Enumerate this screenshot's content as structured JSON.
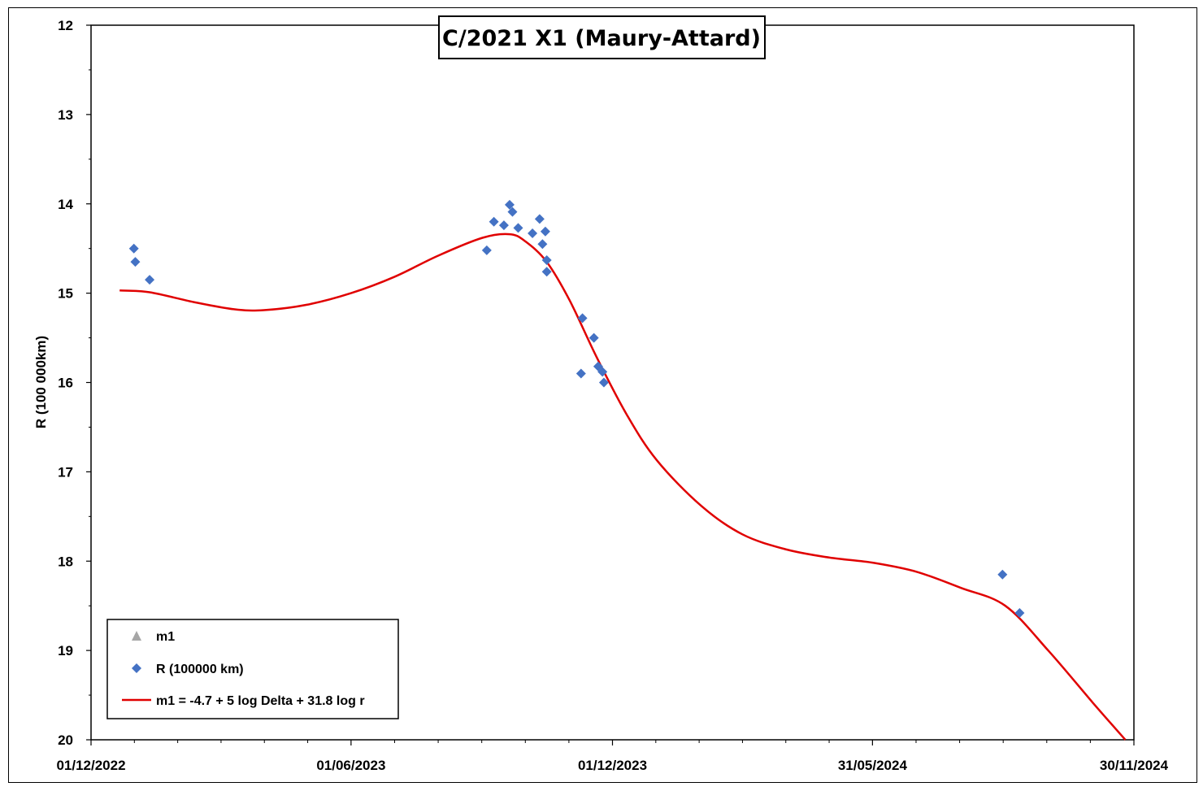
{
  "chart_data": {
    "type": "scatter",
    "title": "C/2021 X1 (Maury-Attard)",
    "xlabel": "",
    "ylabel": "R (100 000km)",
    "y_reversed": true,
    "ylim": [
      12,
      20
    ],
    "yticks": [
      "12",
      "13",
      "14",
      "15",
      "16",
      "17",
      "18",
      "19",
      "20"
    ],
    "xlim": [
      "2022-12-01",
      "2024-11-30"
    ],
    "xticks": [
      "01/12/2022",
      "01/06/2023",
      "01/12/2023",
      "31/05/2024",
      "30/11/2024"
    ],
    "grid": false,
    "legend_position": "bottom-left",
    "series": [
      {
        "name": "m1",
        "kind": "triangle",
        "color": "#a6a6a6",
        "points": []
      },
      {
        "name": "R (100000 km)",
        "kind": "diamond",
        "color": "#4472c4",
        "points": [
          {
            "x": "2022-12-31",
            "y": 14.5
          },
          {
            "x": "2023-01-01",
            "y": 14.65
          },
          {
            "x": "2023-01-11",
            "y": 14.85
          },
          {
            "x": "2023-09-04",
            "y": 14.52
          },
          {
            "x": "2023-09-09",
            "y": 14.2
          },
          {
            "x": "2023-09-16",
            "y": 14.24
          },
          {
            "x": "2023-09-20",
            "y": 14.01
          },
          {
            "x": "2023-09-22",
            "y": 14.09
          },
          {
            "x": "2023-09-26",
            "y": 14.27
          },
          {
            "x": "2023-10-06",
            "y": 14.33
          },
          {
            "x": "2023-10-11",
            "y": 14.17
          },
          {
            "x": "2023-10-13",
            "y": 14.45
          },
          {
            "x": "2023-10-15",
            "y": 14.31
          },
          {
            "x": "2023-10-16",
            "y": 14.63
          },
          {
            "x": "2023-10-16",
            "y": 14.76
          },
          {
            "x": "2023-11-09",
            "y": 15.9
          },
          {
            "x": "2023-11-10",
            "y": 15.28
          },
          {
            "x": "2023-11-18",
            "y": 15.5
          },
          {
            "x": "2023-11-21",
            "y": 15.82
          },
          {
            "x": "2023-11-24",
            "y": 15.88
          },
          {
            "x": "2023-11-25",
            "y": 16.0
          },
          {
            "x": "2024-08-30",
            "y": 18.15
          },
          {
            "x": "2024-09-11",
            "y": 18.58
          }
        ]
      },
      {
        "name": "m1 = -4.7 + 5 log Delta + 31.8 log r",
        "kind": "line",
        "color": "#e00000",
        "points": [
          {
            "x": "2022-12-21",
            "y": 14.97
          },
          {
            "x": "2023-01-11",
            "y": 14.99
          },
          {
            "x": "2023-02-11",
            "y": 15.1
          },
          {
            "x": "2023-03-11",
            "y": 15.18
          },
          {
            "x": "2023-04-01",
            "y": 15.19
          },
          {
            "x": "2023-05-01",
            "y": 15.13
          },
          {
            "x": "2023-06-01",
            "y": 15.0
          },
          {
            "x": "2023-07-01",
            "y": 14.82
          },
          {
            "x": "2023-08-01",
            "y": 14.58
          },
          {
            "x": "2023-09-01",
            "y": 14.38
          },
          {
            "x": "2023-09-20",
            "y": 14.34
          },
          {
            "x": "2023-10-01",
            "y": 14.42
          },
          {
            "x": "2023-10-16",
            "y": 14.65
          },
          {
            "x": "2023-11-01",
            "y": 15.08
          },
          {
            "x": "2023-11-20",
            "y": 15.72
          },
          {
            "x": "2023-12-11",
            "y": 16.36
          },
          {
            "x": "2024-01-01",
            "y": 16.87
          },
          {
            "x": "2024-02-01",
            "y": 17.38
          },
          {
            "x": "2024-03-01",
            "y": 17.7
          },
          {
            "x": "2024-04-01",
            "y": 17.87
          },
          {
            "x": "2024-05-01",
            "y": 17.96
          },
          {
            "x": "2024-06-01",
            "y": 18.02
          },
          {
            "x": "2024-07-01",
            "y": 18.12
          },
          {
            "x": "2024-08-01",
            "y": 18.3
          },
          {
            "x": "2024-09-01",
            "y": 18.5
          },
          {
            "x": "2024-10-01",
            "y": 19.0
          },
          {
            "x": "2024-11-01",
            "y": 19.58
          },
          {
            "x": "2024-11-24",
            "y": 20.0
          }
        ]
      }
    ]
  }
}
